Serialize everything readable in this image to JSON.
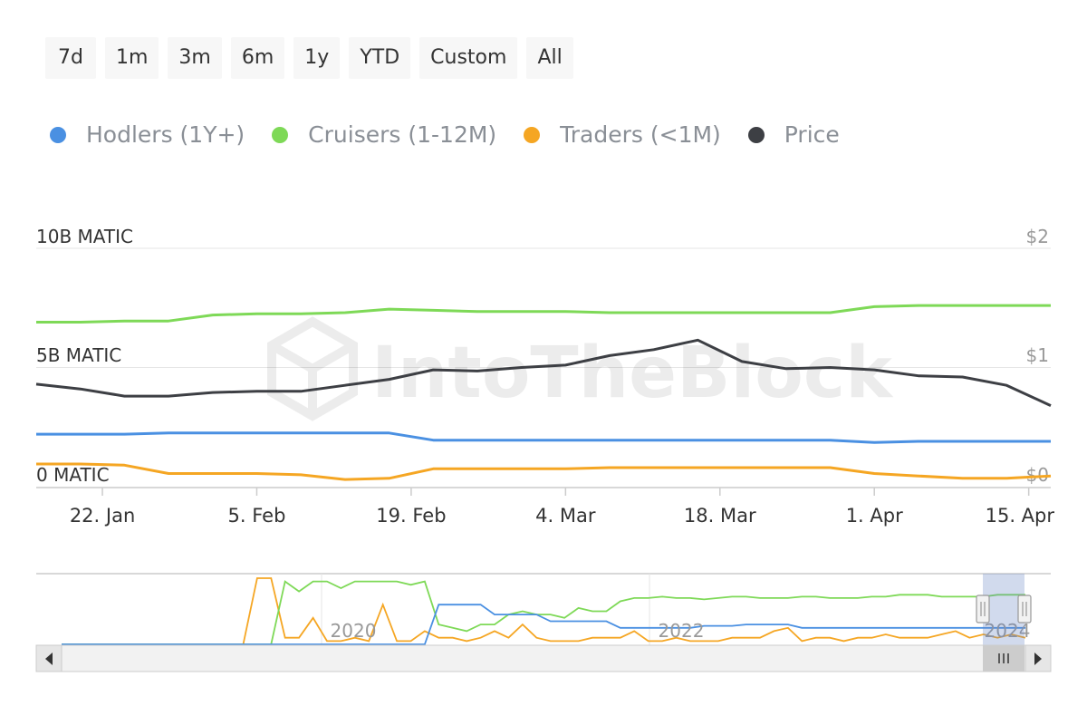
{
  "range_buttons": [
    "7d",
    "1m",
    "3m",
    "6m",
    "1y",
    "YTD",
    "Custom",
    "All"
  ],
  "watermark": "IntoTheBlock",
  "colors": {
    "hodlers": "#4a90e2",
    "cruisers": "#7ed957",
    "traders": "#f5a623",
    "price": "#3d3f44",
    "grid": "#e6e6e6",
    "axis_text": "#333333",
    "right_axis_text": "#999999"
  },
  "chart_data": {
    "type": "line",
    "legend": [
      {
        "name": "Hodlers (1Y+)",
        "color": "#4a90e2"
      },
      {
        "name": "Cruisers (1-12M)",
        "color": "#7ed957"
      },
      {
        "name": "Traders (<1M)",
        "color": "#f5a623"
      },
      {
        "name": "Price",
        "color": "#3d3f44"
      }
    ],
    "legend_position": "top",
    "x_ticks": [
      "22. Jan",
      "5. Feb",
      "19. Feb",
      "4. Mar",
      "18. Mar",
      "1. Apr",
      "15. Apr"
    ],
    "x_dates": [
      "2024-01-16",
      "2024-01-20",
      "2024-01-24",
      "2024-01-28",
      "2024-02-01",
      "2024-02-05",
      "2024-02-09",
      "2024-02-13",
      "2024-02-17",
      "2024-02-21",
      "2024-02-25",
      "2024-02-29",
      "2024-03-04",
      "2024-03-08",
      "2024-03-12",
      "2024-03-16",
      "2024-03-20",
      "2024-03-24",
      "2024-03-28",
      "2024-04-01",
      "2024-04-05",
      "2024-04-09",
      "2024-04-13",
      "2024-04-17"
    ],
    "y_left": {
      "ticks": [
        "10B MATIC",
        "5B MATIC",
        "0 MATIC"
      ],
      "min": 0,
      "max": 10,
      "unit": "B MATIC"
    },
    "y_right": {
      "ticks": [
        "$2",
        "$1",
        "$0"
      ],
      "min": 0,
      "max": 2
    },
    "series": [
      {
        "name": "Cruisers (1-12M)",
        "axis": "left",
        "values": [
          6.9,
          6.9,
          6.95,
          6.95,
          7.2,
          7.25,
          7.25,
          7.3,
          7.45,
          7.4,
          7.35,
          7.35,
          7.35,
          7.3,
          7.3,
          7.3,
          7.3,
          7.3,
          7.3,
          7.55,
          7.6,
          7.6,
          7.6,
          7.6
        ]
      },
      {
        "name": "Hodlers (1Y+)",
        "axis": "left",
        "values": [
          2.2,
          2.2,
          2.2,
          2.25,
          2.25,
          2.25,
          2.25,
          2.25,
          2.25,
          1.95,
          1.95,
          1.95,
          1.95,
          1.95,
          1.95,
          1.95,
          1.95,
          1.95,
          1.95,
          1.85,
          1.9,
          1.9,
          1.9,
          1.9
        ]
      },
      {
        "name": "Traders (<1M)",
        "axis": "left",
        "values": [
          0.95,
          0.95,
          0.9,
          0.55,
          0.55,
          0.55,
          0.5,
          0.3,
          0.35,
          0.75,
          0.75,
          0.75,
          0.75,
          0.8,
          0.8,
          0.8,
          0.8,
          0.8,
          0.8,
          0.55,
          0.45,
          0.35,
          0.35,
          0.45
        ]
      },
      {
        "name": "Price",
        "axis": "right",
        "values": [
          0.86,
          0.82,
          0.76,
          0.76,
          0.79,
          0.8,
          0.8,
          0.85,
          0.9,
          0.98,
          0.97,
          1.0,
          1.02,
          1.1,
          1.15,
          1.23,
          1.05,
          0.99,
          1.0,
          0.98,
          0.93,
          0.92,
          0.85,
          0.68
        ]
      }
    ],
    "grid": true,
    "navigator": {
      "x_ticks": [
        "2020",
        "2022",
        "2024"
      ],
      "series": [
        {
          "name": "Traders (<1M)",
          "values": [
            0,
            0,
            0,
            0,
            0,
            0,
            0,
            0,
            0,
            0,
            0,
            0,
            0,
            0,
            1.0,
            1.0,
            0.1,
            0.1,
            0.4,
            0.05,
            0.05,
            0.1,
            0.05,
            0.6,
            0.05,
            0.05,
            0.2,
            0.1,
            0.1,
            0.05,
            0.1,
            0.2,
            0.1,
            0.3,
            0.1,
            0.05,
            0.05,
            0.05,
            0.1,
            0.1,
            0.1,
            0.2,
            0.05,
            0.05,
            0.1,
            0.05,
            0.05,
            0.05,
            0.1,
            0.1,
            0.1,
            0.2,
            0.25,
            0.05,
            0.1,
            0.1,
            0.05,
            0.1,
            0.1,
            0.15,
            0.1,
            0.1,
            0.1,
            0.15,
            0.2,
            0.1,
            0.15,
            0.1,
            0.15,
            0.1
          ]
        },
        {
          "name": "Cruisers (1-12M)",
          "values": [
            0,
            0,
            0,
            0,
            0,
            0,
            0,
            0,
            0,
            0,
            0,
            0,
            0,
            0,
            0,
            0,
            0.95,
            0.8,
            0.95,
            0.95,
            0.85,
            0.95,
            0.95,
            0.95,
            0.95,
            0.9,
            0.95,
            0.3,
            0.25,
            0.2,
            0.3,
            0.3,
            0.45,
            0.5,
            0.45,
            0.45,
            0.4,
            0.55,
            0.5,
            0.5,
            0.65,
            0.7,
            0.7,
            0.72,
            0.7,
            0.7,
            0.68,
            0.7,
            0.72,
            0.72,
            0.7,
            0.7,
            0.7,
            0.72,
            0.72,
            0.7,
            0.7,
            0.7,
            0.72,
            0.72,
            0.75,
            0.75,
            0.75,
            0.72,
            0.72,
            0.72,
            0.72,
            0.75,
            0.75,
            0.75
          ]
        },
        {
          "name": "Hodlers (1Y+)",
          "values": [
            0,
            0,
            0,
            0,
            0,
            0,
            0,
            0,
            0,
            0,
            0,
            0,
            0,
            0,
            0,
            0,
            0,
            0,
            0,
            0,
            0,
            0,
            0,
            0,
            0,
            0,
            0,
            0.6,
            0.6,
            0.6,
            0.6,
            0.45,
            0.45,
            0.45,
            0.45,
            0.35,
            0.35,
            0.35,
            0.35,
            0.35,
            0.25,
            0.25,
            0.25,
            0.25,
            0.25,
            0.25,
            0.28,
            0.28,
            0.28,
            0.3,
            0.3,
            0.3,
            0.3,
            0.25,
            0.25,
            0.25,
            0.25,
            0.25,
            0.25,
            0.25,
            0.25,
            0.25,
            0.25,
            0.25,
            0.25,
            0.25,
            0.25,
            0.25,
            0.25,
            0.25
          ]
        }
      ]
    }
  }
}
